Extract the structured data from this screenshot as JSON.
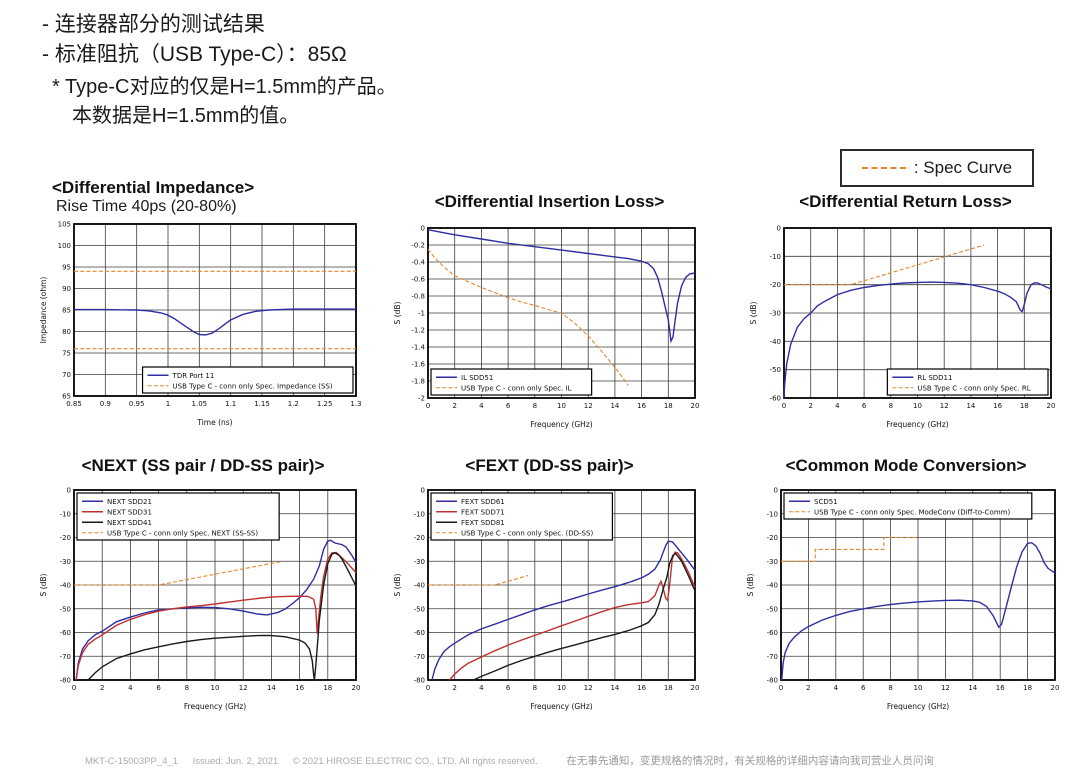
{
  "page": {
    "header_lines": [
      "- 连接器部分的测试结果",
      "- 标准阻抗（USB Type-C）：85Ω",
      "* Type-C对应的仅是H=1.5mm的产品。",
      "本数据是H=1.5mm的值。"
    ],
    "spec_legend_label": ": Spec Curve",
    "footer": {
      "doc_id": "MKT-C-15003PP_4_1",
      "issued": "Issued: Jun. 2, 2021",
      "copyright": "© 2021 HIROSE ELECTRIC CO., LTD. All rights reserved.",
      "note_cn": "在无事先通知，变更规格的情况时，有关规格的详细内容请向我司营业人员问询"
    }
  },
  "colors": {
    "curve_blue": "#2e2ea2",
    "curve_red": "#c03030",
    "curve_black": "#1a1a1a",
    "spec_orange": "#e2862e"
  },
  "chart_data": [
    {
      "type": "line",
      "title": "<Differential Impedance>",
      "subtitle": "Rise Time 40ps (20-80%)",
      "xlabel": "Time (ns)",
      "ylabel": "Impedance (ohm)",
      "xlim": [
        0.85,
        1.3
      ],
      "ylim": [
        65,
        105
      ],
      "xticks": [
        0.85,
        0.9,
        0.95,
        1,
        1.05,
        1.1,
        1.15,
        1.2,
        1.25,
        1.3
      ],
      "yticks": [
        65,
        70,
        75,
        80,
        85,
        90,
        95,
        100,
        105
      ],
      "grid": true,
      "legend_pos": "bottom-right",
      "series": [
        {
          "name": "TDR Port 11",
          "color": "#2e2ea2",
          "dash": false,
          "x": [
            0.85,
            0.9,
            0.95,
            0.97,
            0.99,
            1.0,
            1.01,
            1.02,
            1.03,
            1.04,
            1.05,
            1.06,
            1.07,
            1.08,
            1.09,
            1.1,
            1.12,
            1.14,
            1.16,
            1.2,
            1.25,
            1.3
          ],
          "y": [
            85.1,
            85.1,
            85.0,
            84.8,
            84.3,
            83.8,
            83.0,
            82.0,
            81.0,
            80.0,
            79.3,
            79.2,
            79.6,
            80.5,
            81.6,
            82.7,
            84.0,
            84.7,
            85.0,
            85.2,
            85.2,
            85.2
          ]
        },
        {
          "name": "USB Type C - conn only Spec. Impedance (SS)",
          "color": "#e2862e",
          "dash": true,
          "x": [
            0.85,
            1.3,
            null,
            0.85,
            1.3
          ],
          "y": [
            94,
            94,
            null,
            76,
            76
          ]
        }
      ]
    },
    {
      "type": "line",
      "title": "<Differential Insertion Loss>",
      "xlabel": "Frequency (GHz)",
      "ylabel": "S (dB)",
      "xlim": [
        0,
        20
      ],
      "ylim": [
        -2,
        0
      ],
      "xticks": [
        0,
        2,
        4,
        6,
        8,
        10,
        12,
        14,
        16,
        18,
        20
      ],
      "yticks": [
        0,
        -0.2,
        -0.4,
        -0.6,
        -0.8,
        -1,
        -1.2,
        -1.4,
        -1.6,
        -1.8,
        -2
      ],
      "grid": true,
      "legend_pos": "bottom-left",
      "series": [
        {
          "name": "IL SDD51",
          "color": "#2e2ea2",
          "dash": false,
          "x": [
            0,
            1,
            2,
            4,
            6,
            8,
            10,
            12,
            14,
            15,
            16,
            16.5,
            16.9,
            17.2,
            17.5,
            17.8,
            18.0,
            18.1,
            18.2,
            18.35,
            18.5,
            18.7,
            19.0,
            19.3,
            19.6,
            20
          ],
          "y": [
            -0.02,
            -0.05,
            -0.08,
            -0.13,
            -0.18,
            -0.22,
            -0.26,
            -0.3,
            -0.34,
            -0.36,
            -0.39,
            -0.42,
            -0.48,
            -0.58,
            -0.75,
            -0.95,
            -1.08,
            -1.2,
            -1.33,
            -1.28,
            -1.1,
            -0.88,
            -0.68,
            -0.58,
            -0.54,
            -0.53
          ]
        },
        {
          "name": "USB Type C - conn only Spec. IL",
          "color": "#e2862e",
          "dash": true,
          "x": [
            0,
            0.5,
            1,
            1.5,
            2,
            2.5,
            3,
            4,
            5,
            6,
            7,
            8,
            9,
            10,
            10.5,
            11,
            12,
            13,
            14,
            15
          ],
          "y": [
            -0.25,
            -0.35,
            -0.43,
            -0.5,
            -0.56,
            -0.6,
            -0.63,
            -0.7,
            -0.76,
            -0.82,
            -0.87,
            -0.91,
            -0.96,
            -1.0,
            -1.06,
            -1.12,
            -1.27,
            -1.45,
            -1.64,
            -1.85
          ]
        }
      ]
    },
    {
      "type": "line",
      "title": "<Differential Return Loss>",
      "xlabel": "Frequency (GHz)",
      "ylabel": "S (dB)",
      "xlim": [
        0,
        20
      ],
      "ylim": [
        -60,
        0
      ],
      "xticks": [
        0,
        2,
        4,
        6,
        8,
        10,
        12,
        14,
        16,
        18,
        20
      ],
      "yticks": [
        0,
        -10,
        -20,
        -30,
        -40,
        -50,
        -60
      ],
      "grid": true,
      "legend_pos": "bottom-right",
      "series": [
        {
          "name": "RL SDD11",
          "color": "#2e2ea2",
          "dash": false,
          "x": [
            0,
            0.05,
            0.2,
            0.5,
            1,
            1.5,
            2,
            2.5,
            3,
            4,
            5,
            6,
            7,
            8,
            9,
            10,
            11,
            12,
            13,
            14,
            15,
            16,
            16.5,
            17,
            17.4,
            17.7,
            17.85,
            18.0,
            18.2,
            18.5,
            18.8,
            19.0,
            19.3,
            19.6,
            20
          ],
          "y": [
            -60,
            -55,
            -48,
            -41,
            -35,
            -32,
            -30,
            -27.5,
            -26,
            -23.5,
            -22,
            -21,
            -20.3,
            -19.8,
            -19.4,
            -19.2,
            -19.1,
            -19.2,
            -19.5,
            -20,
            -21,
            -22.3,
            -23.2,
            -24.5,
            -26,
            -29,
            -29.5,
            -27,
            -23,
            -20,
            -19.3,
            -19.4,
            -20,
            -20.8,
            -21.5
          ]
        },
        {
          "name": "USB Type C - conn only Spec. RL",
          "color": "#e2862e",
          "dash": true,
          "x": [
            0,
            5,
            15
          ],
          "y": [
            -20,
            -20,
            -6
          ]
        }
      ]
    },
    {
      "type": "line",
      "title": "<NEXT (SS pair / DD-SS pair)>",
      "xlabel": "Frequency (GHz)",
      "ylabel": "S (dB)",
      "xlim": [
        0,
        20
      ],
      "ylim": [
        -80,
        0
      ],
      "xticks": [
        0,
        2,
        4,
        6,
        8,
        10,
        12,
        14,
        16,
        18,
        20
      ],
      "yticks": [
        0,
        -10,
        -20,
        -30,
        -40,
        -50,
        -60,
        -70,
        -80
      ],
      "grid": true,
      "legend_pos": "top-left",
      "series": [
        {
          "name": "NEXT SDD21",
          "color": "#2e2ea2",
          "dash": false,
          "x": [
            0.15,
            0.3,
            0.6,
            1,
            1.5,
            2,
            3,
            4,
            5,
            6,
            7,
            8,
            9,
            10,
            11,
            12,
            13,
            13.7,
            14.5,
            15,
            15.5,
            16,
            16.5,
            17,
            17.4,
            17.7,
            18.0,
            18.2,
            18.5,
            19,
            19.3,
            19.7,
            20
          ],
          "y": [
            -80,
            -73,
            -67,
            -63.5,
            -61,
            -59.5,
            -55.5,
            -53.5,
            -51.8,
            -50.5,
            -50,
            -49.6,
            -49.4,
            -49.5,
            -50,
            -51,
            -52.2,
            -52.6,
            -51.5,
            -50,
            -47.8,
            -45.3,
            -42,
            -37.5,
            -32,
            -25,
            -21.5,
            -21.2,
            -22.3,
            -23,
            -24,
            -27.5,
            -30.5
          ]
        },
        {
          "name": "NEXT SDD31",
          "color": "#c03030",
          "dash": false,
          "x": [
            0.15,
            0.3,
            0.6,
            1,
            1.5,
            2,
            3,
            4,
            5,
            6,
            7,
            8,
            9,
            10,
            11,
            12,
            13,
            14,
            15,
            16,
            16.6,
            17.0,
            17.15,
            17.25,
            17.35,
            17.5,
            17.7,
            18.0,
            18.3,
            18.6,
            19,
            19.5,
            20
          ],
          "y": [
            -80,
            -74,
            -68.5,
            -65,
            -62.8,
            -61,
            -57,
            -54.5,
            -52.5,
            -51,
            -50,
            -49.2,
            -48.7,
            -48,
            -47.2,
            -46.4,
            -45.7,
            -45.1,
            -44.8,
            -44.7,
            -44.8,
            -46,
            -50,
            -60.5,
            -54,
            -45,
            -36.5,
            -29,
            -26.5,
            -26.3,
            -28.5,
            -31.5,
            -34.8
          ]
        },
        {
          "name": "NEXT SDD41",
          "color": "#1a1a1a",
          "dash": false,
          "x": [
            1.0,
            1.5,
            2,
            3,
            4,
            5,
            6,
            7,
            8,
            9,
            10,
            11,
            12,
            13,
            13.5,
            14,
            15,
            16,
            16.4,
            16.7,
            16.9,
            17.0,
            17.05,
            17.15,
            17.4,
            17.7,
            18.0,
            18.3,
            18.5,
            18.8,
            19,
            19.5,
            20
          ],
          "y": [
            -80,
            -77,
            -74.5,
            -71,
            -69,
            -67.3,
            -66,
            -64.8,
            -63.8,
            -63,
            -62.4,
            -62,
            -61.6,
            -61.3,
            -61.2,
            -61.3,
            -61.8,
            -63.2,
            -64.5,
            -67,
            -72,
            -78,
            -80,
            -74,
            -55,
            -40,
            -31,
            -27,
            -26.5,
            -27.5,
            -29,
            -34.5,
            -40.5
          ]
        },
        {
          "name": "USB Type C - conn only Spec. NEXT (SS-SS)",
          "color": "#e2862e",
          "dash": true,
          "x": [
            0,
            6,
            14.8
          ],
          "y": [
            -40,
            -40,
            -30
          ]
        }
      ]
    },
    {
      "type": "line",
      "title": "<FEXT (DD-SS pair)>",
      "xlabel": "Frequency (GHz)",
      "ylabel": "S (dB)",
      "xlim": [
        0,
        20
      ],
      "ylim": [
        -80,
        0
      ],
      "xticks": [
        0,
        2,
        4,
        6,
        8,
        10,
        12,
        14,
        16,
        18,
        20
      ],
      "yticks": [
        0,
        -10,
        -20,
        -30,
        -40,
        -50,
        -60,
        -70,
        -80
      ],
      "grid": true,
      "legend_pos": "top-left",
      "series": [
        {
          "name": "FEXT SDD61",
          "color": "#2e2ea2",
          "dash": false,
          "x": [
            0.3,
            0.5,
            0.8,
            1.2,
            1.6,
            2,
            3,
            4,
            5,
            6,
            7,
            8,
            9,
            10,
            11,
            12,
            13,
            14,
            15,
            16,
            16.5,
            17,
            17.4,
            17.8,
            18.0,
            18.3,
            18.6,
            19,
            19.5,
            20
          ],
          "y": [
            -80,
            -75.5,
            -71.5,
            -68,
            -66,
            -64.5,
            -61,
            -58.5,
            -56.5,
            -54.5,
            -52.5,
            -50.5,
            -48.7,
            -47.2,
            -45.5,
            -43.8,
            -42.2,
            -40.7,
            -39,
            -37,
            -35.5,
            -33.3,
            -29.5,
            -23.5,
            -21.5,
            -21.8,
            -23.8,
            -26.5,
            -30,
            -33.8
          ]
        },
        {
          "name": "FEXT SDD71",
          "color": "#c03030",
          "dash": false,
          "x": [
            1.6,
            2,
            2.5,
            3,
            4,
            5,
            6,
            7,
            8,
            9,
            10,
            11,
            12,
            13,
            14,
            15,
            16,
            16.5,
            17,
            17.3,
            17.45,
            17.6,
            17.8,
            17.95,
            18.1,
            18.3,
            18.5,
            18.7,
            19,
            19.5,
            20
          ],
          "y": [
            -80,
            -77.5,
            -75,
            -73,
            -70.3,
            -67.7,
            -65.3,
            -63.2,
            -61.2,
            -59.2,
            -57.2,
            -55.2,
            -53.2,
            -51.3,
            -49.5,
            -48.3,
            -47.5,
            -47,
            -44.5,
            -40,
            -38.5,
            -41,
            -45.5,
            -46.5,
            -40,
            -29,
            -26.2,
            -26.5,
            -29,
            -34.5,
            -41
          ]
        },
        {
          "name": "FEXT SDD81",
          "color": "#1a1a1a",
          "dash": false,
          "x": [
            3.4,
            4,
            5,
            6,
            7,
            8,
            9,
            10,
            11,
            12,
            13,
            14,
            15,
            16,
            16.5,
            17,
            17.3,
            17.6,
            17.9,
            18.1,
            18.35,
            18.55,
            18.8,
            19,
            19.5,
            20
          ],
          "y": [
            -80,
            -78.5,
            -76.2,
            -73.8,
            -71.8,
            -70,
            -68.3,
            -66.7,
            -65.2,
            -63.7,
            -62.2,
            -60.8,
            -59.2,
            -57.2,
            -55.8,
            -52.5,
            -48,
            -42,
            -36.5,
            -31,
            -27.5,
            -26.8,
            -28.5,
            -30,
            -36,
            -42.5
          ]
        },
        {
          "name": "USB Type C - conn only Spec. (DD-SS)",
          "color": "#e2862e",
          "dash": true,
          "x": [
            0,
            5,
            7.5
          ],
          "y": [
            -40,
            -40,
            -36
          ]
        }
      ]
    },
    {
      "type": "line",
      "title": "<Common Mode Conversion>",
      "xlabel": "Frequency (GHz)",
      "ylabel": "S (dB)",
      "xlim": [
        0,
        20
      ],
      "ylim": [
        -80,
        0
      ],
      "xticks": [
        0,
        2,
        4,
        6,
        8,
        10,
        12,
        14,
        16,
        18,
        20
      ],
      "yticks": [
        0,
        -10,
        -20,
        -30,
        -40,
        -50,
        -60,
        -70,
        -80
      ],
      "grid": true,
      "legend_pos": "top-left",
      "series": [
        {
          "name": "SCD51",
          "color": "#2e2ea2",
          "dash": false,
          "x": [
            0.05,
            0.15,
            0.3,
            0.6,
            1,
            1.5,
            2,
            3,
            4,
            5,
            6,
            7,
            8,
            9,
            10,
            11,
            12,
            13,
            14,
            14.5,
            15,
            15.5,
            15.9,
            16.1,
            16.4,
            16.8,
            17.2,
            17.6,
            18.0,
            18.3,
            18.6,
            18.9,
            19.2,
            19.5,
            20
          ],
          "y": [
            -80,
            -73,
            -68.5,
            -64.5,
            -61.8,
            -59.3,
            -57.5,
            -54.8,
            -52.8,
            -51.2,
            -50,
            -49,
            -48.2,
            -47.6,
            -47.1,
            -46.8,
            -46.5,
            -46.4,
            -46.7,
            -47.3,
            -49,
            -53,
            -57.8,
            -56.5,
            -50,
            -41,
            -32.5,
            -26,
            -22.5,
            -22.2,
            -23.5,
            -26.5,
            -30.5,
            -33,
            -35
          ]
        },
        {
          "name": "USB Type C - conn only Spec. ModeConv (Diff-to-Comm)",
          "color": "#e2862e",
          "dash": true,
          "x": [
            0,
            2.5,
            2.5,
            7.5,
            7.5,
            10
          ],
          "y": [
            -30,
            -30,
            -25,
            -25,
            -20,
            -20
          ]
        }
      ]
    }
  ]
}
